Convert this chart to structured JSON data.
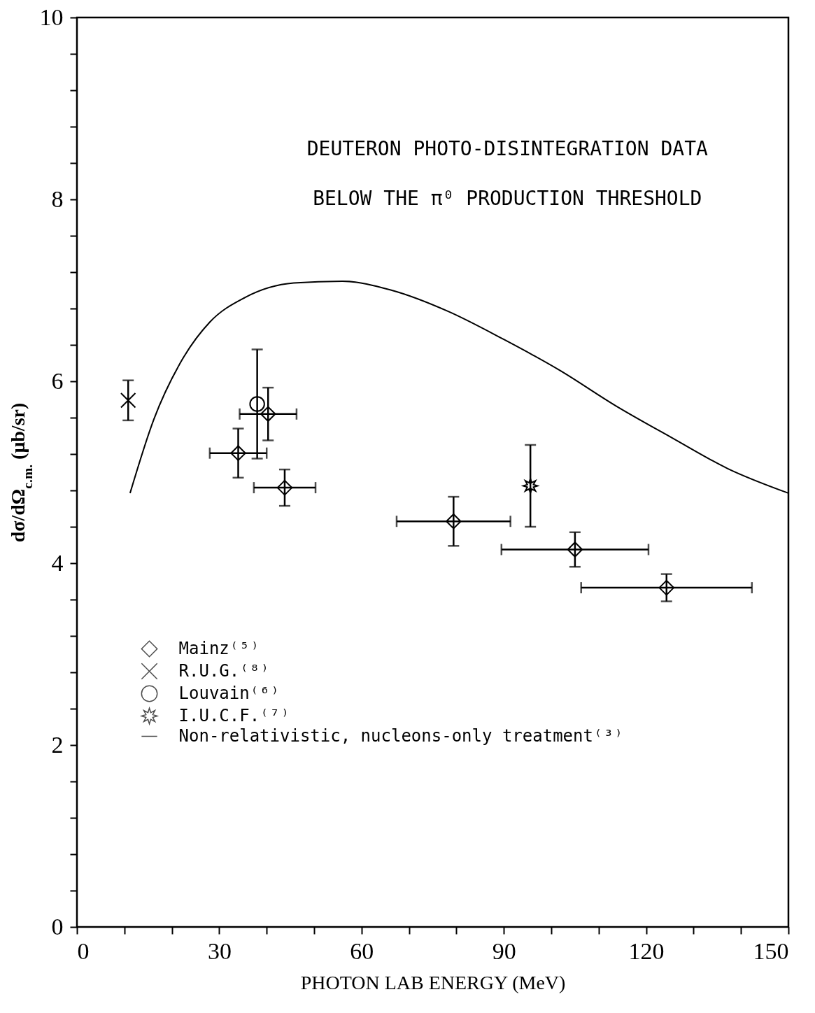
{
  "chart_data": {
    "type": "scatter",
    "xlabel": "PHOTON LAB ENERGY (MeV)",
    "ylabel": "dσ/dΩ$_{c.m.}$ (μb/sr)",
    "annotations": [
      "DEUTERON PHOTO-DISINTEGRATION DATA",
      "BELOW THE π⁰ PRODUCTION THRESHOLD"
    ],
    "xlim": [
      0,
      150
    ],
    "ylim": [
      0,
      10
    ],
    "xticks": [
      0,
      {
        "value": 10,
        "label": null
      },
      {
        "value": 20,
        "label": null
      },
      30,
      {
        "value": 40,
        "label": null
      },
      {
        "value": 50,
        "label": null
      },
      60,
      {
        "value": 70,
        "label": null
      },
      {
        "value": 80,
        "label": null
      },
      90,
      {
        "value": 100,
        "label": null
      },
      {
        "value": 110,
        "label": null
      },
      120,
      {
        "value": 130,
        "label": null
      },
      {
        "value": 140,
        "label": null
      },
      150
    ],
    "yticks": [
      0,
      {
        "value": 0.4,
        "label": null
      },
      {
        "value": 0.8,
        "label": null
      },
      {
        "value": 1.2,
        "label": null
      },
      {
        "value": 1.6,
        "label": null
      },
      2,
      {
        "value": 2.4,
        "label": null
      },
      {
        "value": 2.8,
        "label": null
      },
      {
        "value": 3.2,
        "label": null
      },
      {
        "value": 3.6,
        "label": null
      },
      4,
      {
        "value": 4.4,
        "label": null
      },
      {
        "value": 4.8,
        "label": null
      },
      {
        "value": 5.2,
        "label": null
      },
      {
        "value": 5.6,
        "label": null
      },
      6,
      {
        "value": 6.4,
        "label": null
      },
      {
        "value": 6.8,
        "label": null
      },
      {
        "value": 7.2,
        "label": null
      },
      {
        "value": 7.6,
        "label": null
      },
      8,
      {
        "value": 8.4,
        "label": null
      },
      {
        "value": 8.8,
        "label": null
      },
      {
        "value": 9.2,
        "label": null
      },
      {
        "value": 9.6,
        "label": null
      },
      10
    ],
    "grid": false,
    "legend": "bottom left",
    "series": [
      {
        "name": "Mainz⁽⁵⁾",
        "color": "#000000",
        "marker": "diamond",
        "x": [
          34,
          40.3,
          43.8,
          79.4,
          105,
          124.3
        ],
        "values": [
          5.21,
          5.64,
          4.83,
          4.46,
          4.15,
          3.73
        ],
        "errors": [
          0.27,
          0.29,
          0.2,
          0.27,
          0.19,
          0.15
        ],
        "xerrors": [
          6,
          6,
          6.5,
          12,
          15.5,
          18
        ]
      },
      {
        "name": "R.U.G.⁽⁸⁾",
        "color": "#000000",
        "marker": "cross",
        "x": [
          10.8
        ],
        "values": [
          5.79
        ],
        "errors": [
          0.22
        ]
      },
      {
        "name": "Louvain⁽⁶⁾",
        "color": "#000000",
        "marker": "circle",
        "x": [
          38
        ],
        "values": [
          5.75
        ],
        "errors": [
          0.6
        ]
      },
      {
        "name": "I.U.C.F.⁽⁷⁾",
        "color": "#000000",
        "marker": "star",
        "x": [
          95.6
        ],
        "values": [
          4.85
        ],
        "errors": [
          0.45
        ]
      },
      {
        "name": "Non-relativistic, nucleons-only treatment⁽³⁾",
        "color": "#000000",
        "type": "line",
        "marker": "none",
        "line_style": "solid",
        "x": [
          11.2,
          16.2,
          22.1,
          28,
          35.4,
          45.7,
          56,
          66.4,
          78.2,
          90,
          101.8,
          113.6,
          125.4,
          137.2,
          150
        ],
        "values": [
          4.77,
          5.58,
          6.23,
          6.65,
          6.92,
          7.08,
          7.1,
          7.0,
          6.77,
          6.46,
          6.12,
          5.73,
          5.38,
          5.04,
          4.77
        ]
      }
    ]
  }
}
